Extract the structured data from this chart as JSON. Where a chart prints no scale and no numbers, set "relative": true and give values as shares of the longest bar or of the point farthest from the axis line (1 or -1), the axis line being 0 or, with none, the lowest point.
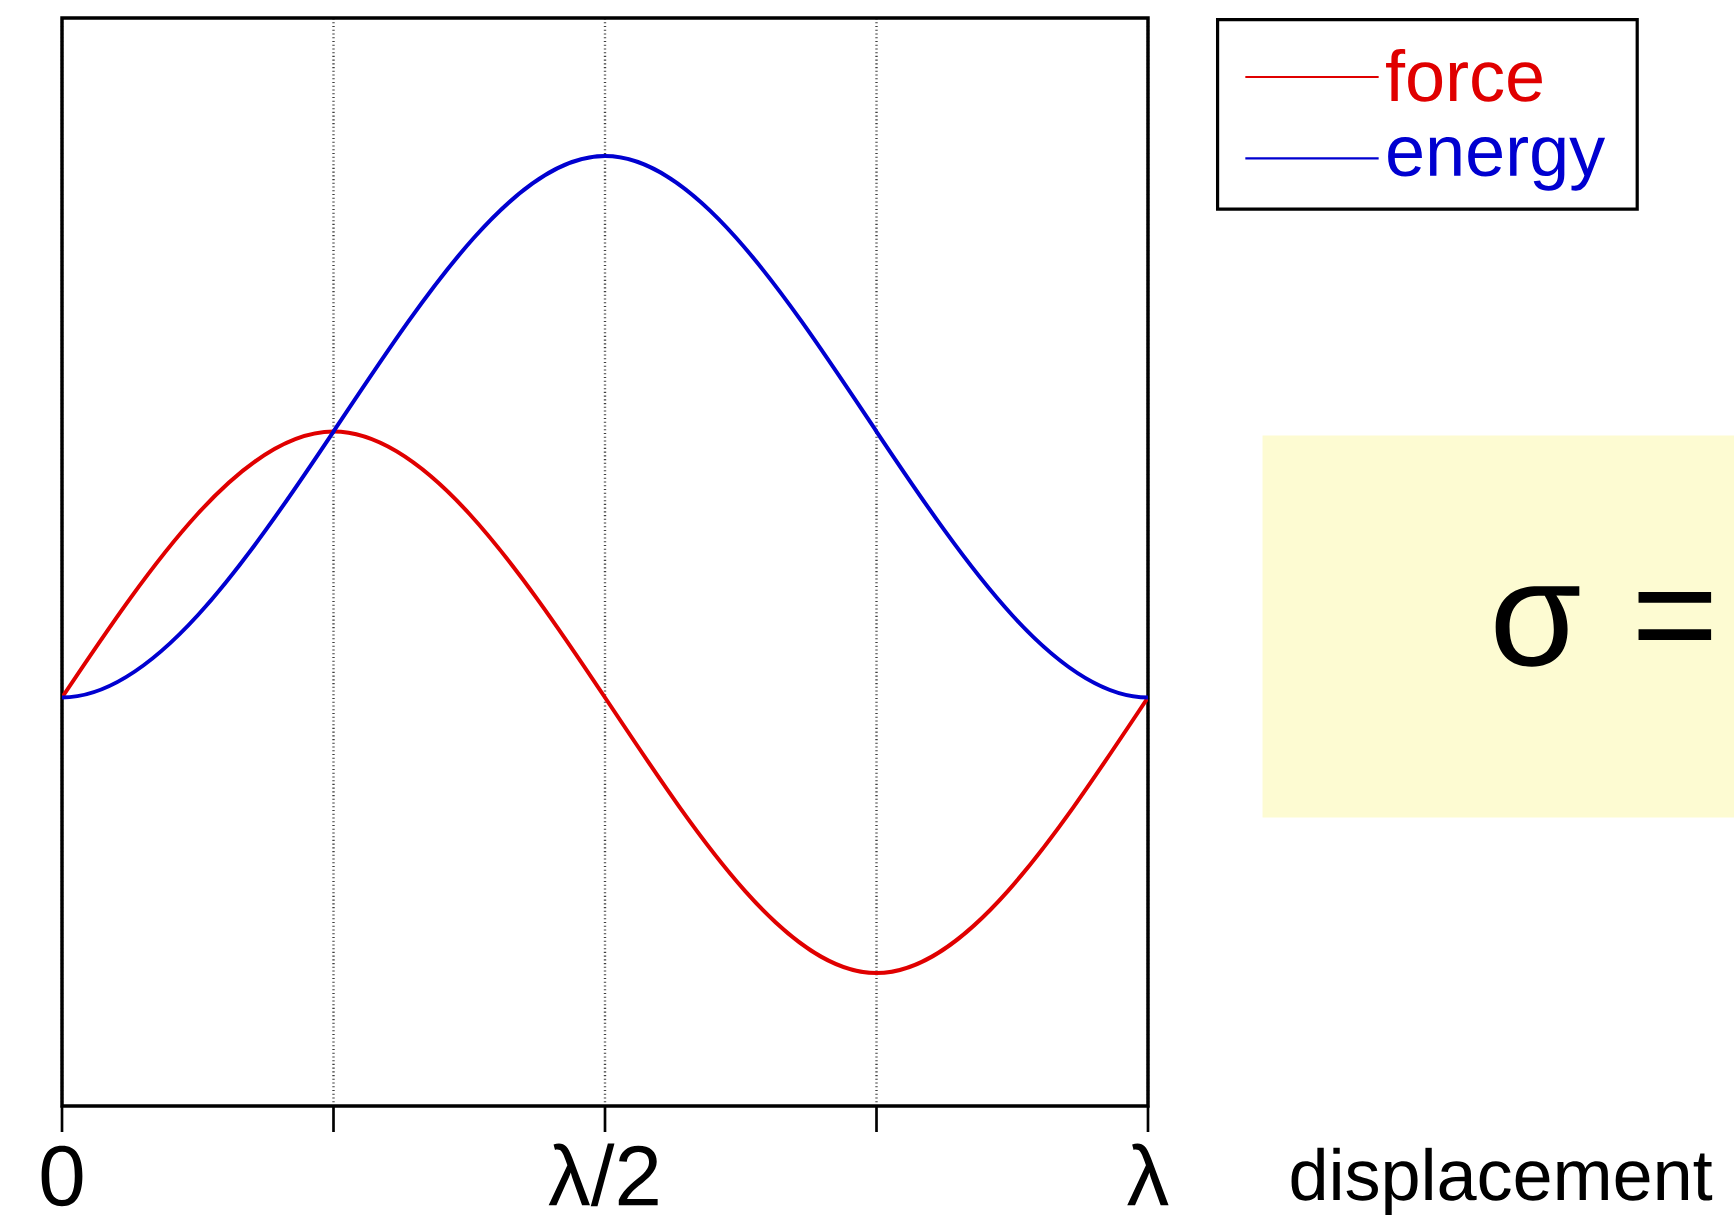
{
  "chart_data": {
    "type": "line",
    "relative": true,
    "xlabel": "displacement",
    "categories": [
      "0",
      null,
      "λ/2",
      null,
      "λ"
    ],
    "grid": "x",
    "legend": "top right",
    "marker": "none",
    "line_style": "solid",
    "series": [
      {
        "name": "force",
        "color": "#e00000",
        "values": [
          0.43,
          0.71,
          0.43,
          0.14,
          0.43
        ]
      },
      {
        "name": "energy",
        "color": "#0000d0",
        "values": [
          0.43,
          0.71,
          1,
          0.71,
          0.43
        ]
      }
    ],
    "annotations": [
      "σ ="
    ]
  }
}
